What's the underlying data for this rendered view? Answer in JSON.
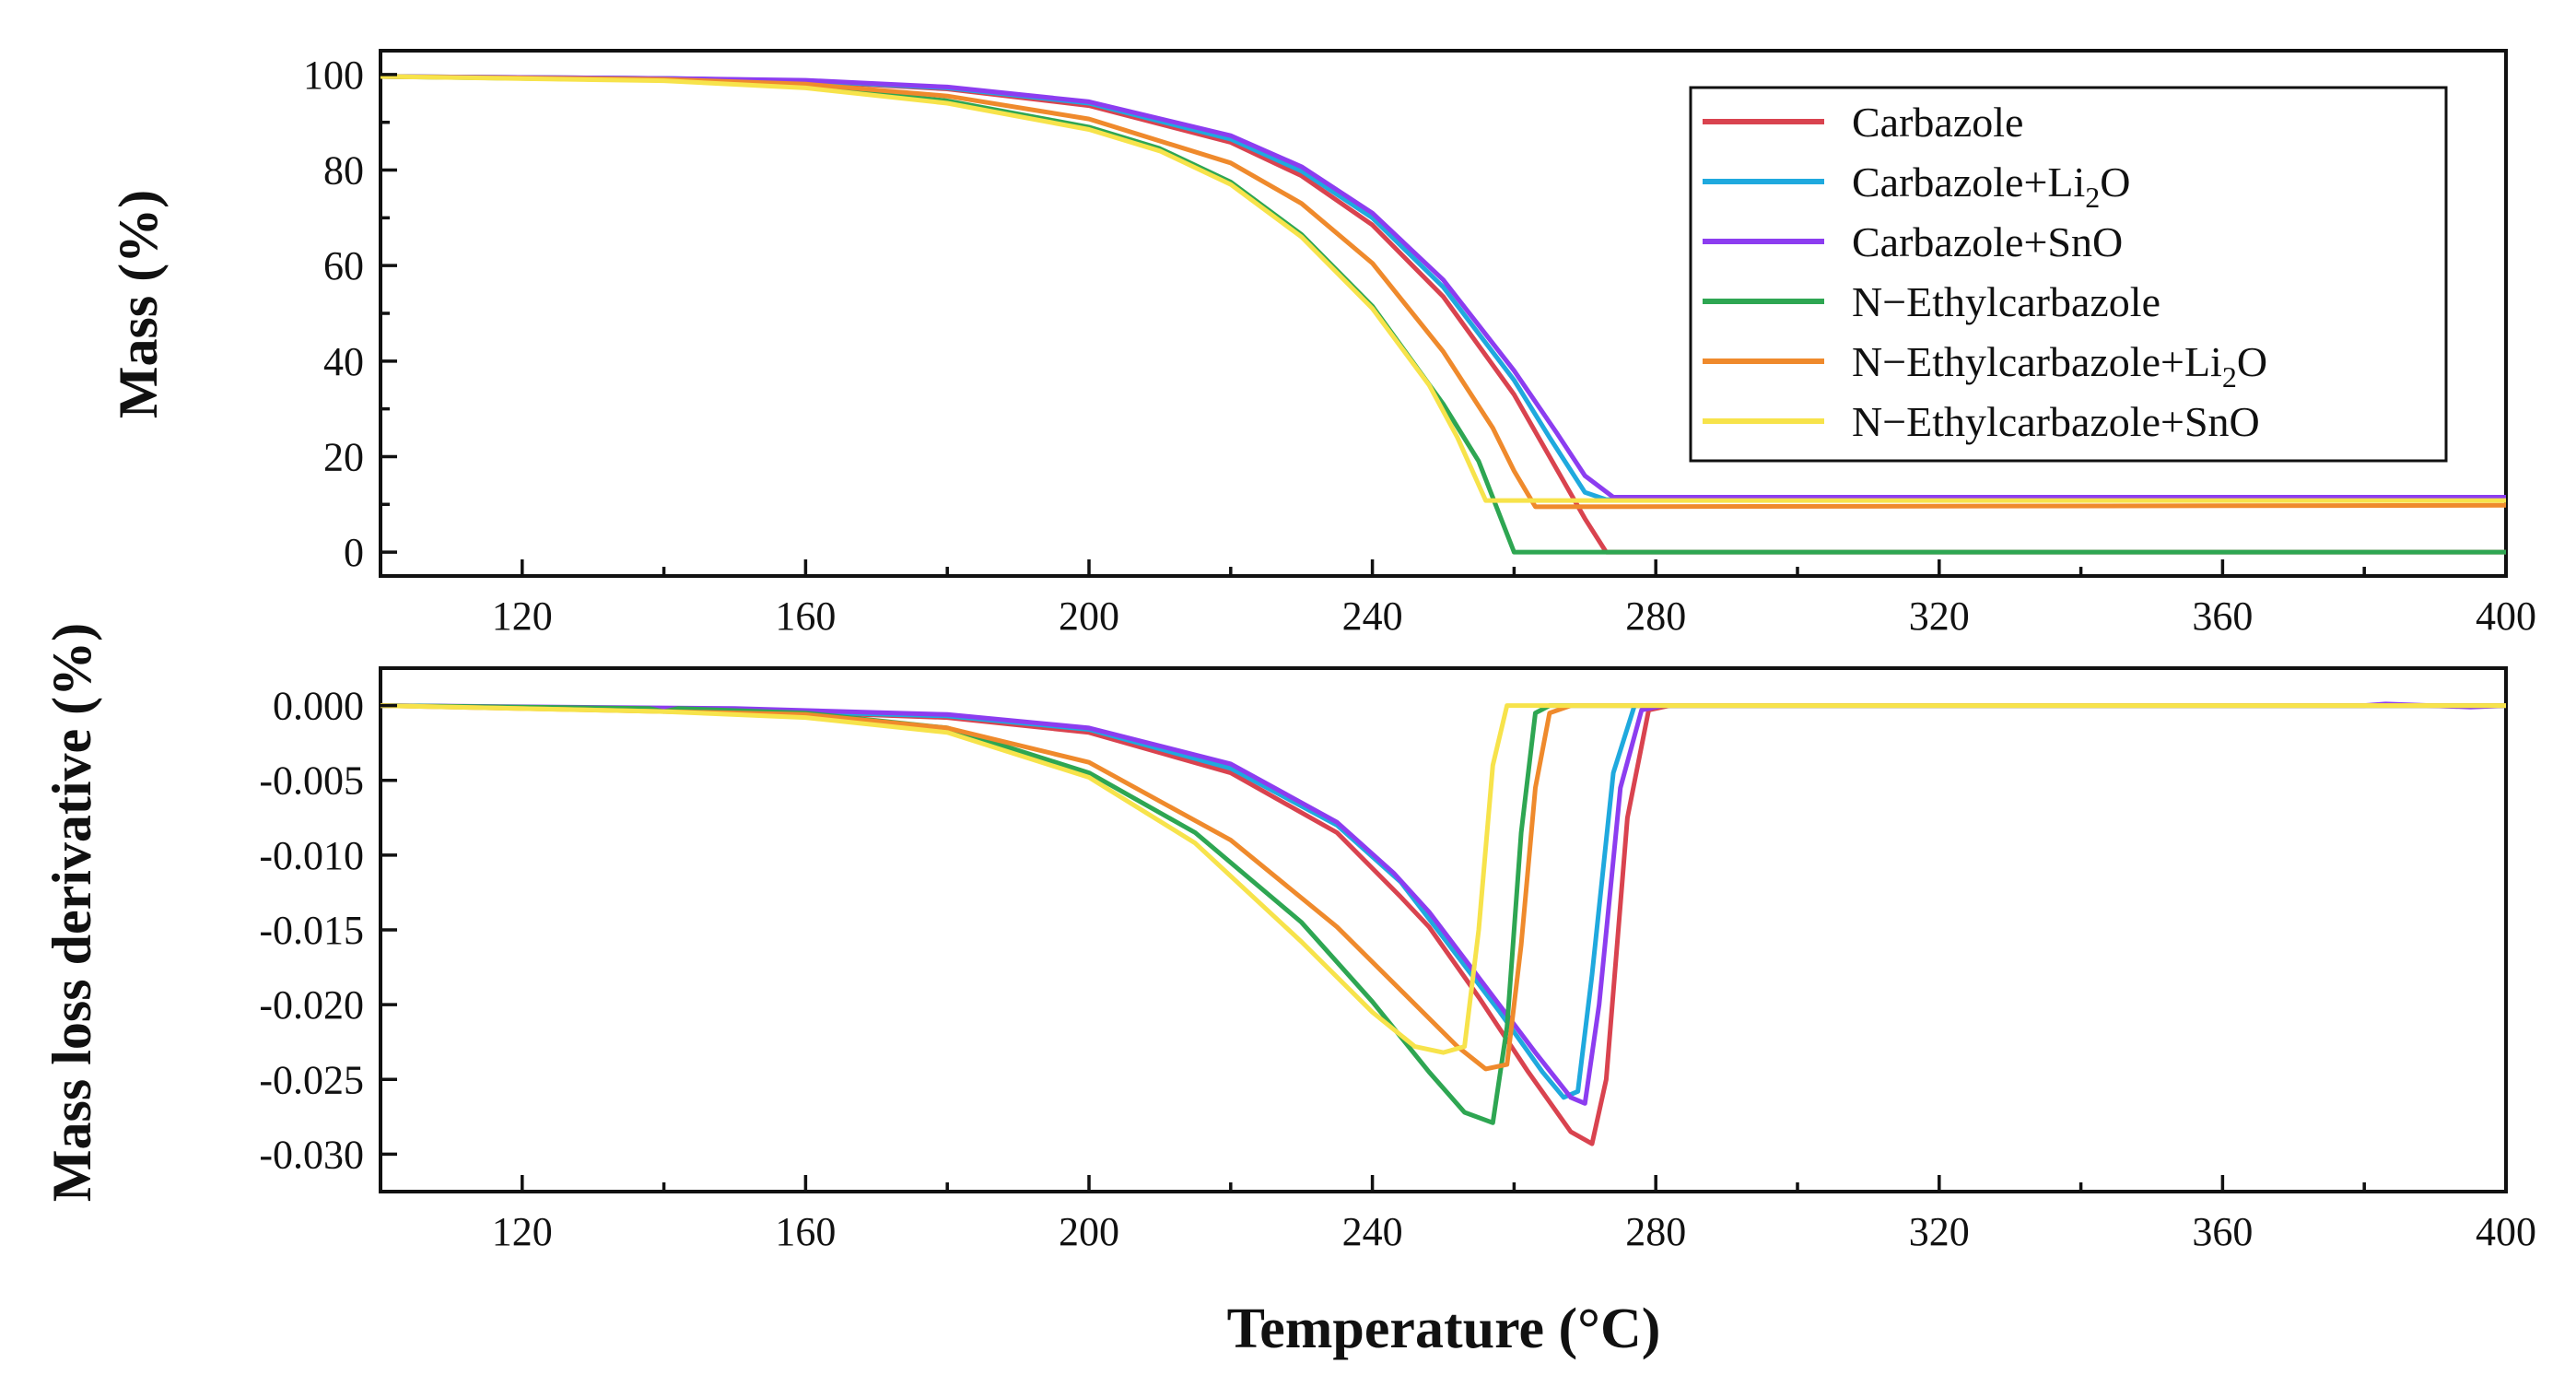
{
  "chart_data": [
    {
      "type": "line",
      "panel": "top",
      "title": "",
      "xlabel": "",
      "ylabel": "Mass (%)",
      "xlim": [
        100,
        400
      ],
      "ylim": [
        -5,
        105
      ],
      "x_ticks": [
        120,
        160,
        200,
        240,
        280,
        320,
        360,
        400
      ],
      "y_ticks": [
        0,
        20,
        40,
        60,
        80,
        100
      ],
      "legend_position": "top-right",
      "series": [
        {
          "name": "Carbazole",
          "legend_label": "Carbazole",
          "color": "#d9434f",
          "points": [
            [
              100,
              99.6
            ],
            [
              140,
              99.2
            ],
            [
              160,
              98.6
            ],
            [
              180,
              97
            ],
            [
              200,
              93.5
            ],
            [
              220,
              85.8
            ],
            [
              230,
              78.8
            ],
            [
              240,
              68.5
            ],
            [
              250,
              53.5
            ],
            [
              260,
              33
            ],
            [
              265,
              20
            ],
            [
              270,
              7
            ],
            [
              273,
              0
            ],
            [
              400,
              0
            ]
          ]
        },
        {
          "name": "Carbazole+Li2O",
          "legend_label": "Carbazole+Li",
          "legend_sub": "2",
          "legend_tail": "O",
          "color": "#1fa9de",
          "points": [
            [
              100,
              99.6
            ],
            [
              140,
              99.2
            ],
            [
              160,
              98.7
            ],
            [
              180,
              97.2
            ],
            [
              200,
              94
            ],
            [
              220,
              86.5
            ],
            [
              230,
              79.8
            ],
            [
              240,
              70
            ],
            [
              250,
              55.5
            ],
            [
              260,
              36
            ],
            [
              265,
              24
            ],
            [
              270,
              12.5
            ],
            [
              273,
              11
            ],
            [
              400,
              11
            ]
          ]
        },
        {
          "name": "Carbazole+SnO",
          "legend_label": "Carbazole+SnO",
          "color": "#8c3df0",
          "points": [
            [
              100,
              99.6
            ],
            [
              140,
              99.2
            ],
            [
              160,
              98.8
            ],
            [
              180,
              97.4
            ],
            [
              200,
              94.3
            ],
            [
              220,
              87.2
            ],
            [
              230,
              80.7
            ],
            [
              240,
              71
            ],
            [
              250,
              57
            ],
            [
              260,
              38
            ],
            [
              266,
              25
            ],
            [
              270,
              16
            ],
            [
              274,
              11.5
            ],
            [
              400,
              11.5
            ]
          ]
        },
        {
          "name": "N-Ethylcarbazole",
          "legend_label": "N−Ethylcarbazole",
          "color": "#2ea652",
          "points": [
            [
              100,
              99.6
            ],
            [
              140,
              98.8
            ],
            [
              160,
              97.5
            ],
            [
              180,
              94.5
            ],
            [
              200,
              89
            ],
            [
              210,
              84.5
            ],
            [
              220,
              77.5
            ],
            [
              230,
              66.5
            ],
            [
              240,
              51.5
            ],
            [
              250,
              31
            ],
            [
              255,
              19
            ],
            [
              260,
              0
            ],
            [
              400,
              0
            ]
          ]
        },
        {
          "name": "N-Ethylcarbazole+Li2O",
          "legend_label": "N−Ethylcarbazole+Li",
          "legend_sub": "2",
          "legend_tail": "O",
          "color": "#ef8a2c",
          "points": [
            [
              100,
              99.6
            ],
            [
              140,
              99
            ],
            [
              160,
              98
            ],
            [
              180,
              95.5
            ],
            [
              200,
              90.7
            ],
            [
              220,
              81.5
            ],
            [
              230,
              73
            ],
            [
              240,
              60.5
            ],
            [
              250,
              42
            ],
            [
              257,
              26
            ],
            [
              260,
              17
            ],
            [
              263,
              9.5
            ],
            [
              400,
              9.8
            ]
          ]
        },
        {
          "name": "N-Ethylcarbazole+SnO",
          "legend_label": "N−Ethylcarbazole+SnO",
          "color": "#f7e34b",
          "points": [
            [
              100,
              99.6
            ],
            [
              140,
              98.7
            ],
            [
              160,
              97.2
            ],
            [
              180,
              94
            ],
            [
              200,
              88.5
            ],
            [
              210,
              84
            ],
            [
              220,
              77
            ],
            [
              230,
              66
            ],
            [
              240,
              51
            ],
            [
              248,
              35
            ],
            [
              252,
              24
            ],
            [
              256,
              10.8
            ],
            [
              400,
              10.8
            ]
          ]
        }
      ]
    },
    {
      "type": "line",
      "panel": "bottom",
      "title": "",
      "xlabel": "Temperature (°C)",
      "ylabel": "Mass loss derivative (%)",
      "xlim": [
        100,
        400
      ],
      "ylim": [
        -0.0325,
        0.0025
      ],
      "x_ticks": [
        120,
        160,
        200,
        240,
        280,
        320,
        360,
        400
      ],
      "y_ticks": [
        "0.000",
        "-0.005",
        "-0.010",
        "-0.015",
        "-0.020",
        "-0.025",
        "-0.030"
      ],
      "y_tick_values": [
        0,
        -0.005,
        -0.01,
        -0.015,
        -0.02,
        -0.025,
        -0.03
      ],
      "series": [
        {
          "name": "Carbazole",
          "color": "#d9434f",
          "points": [
            [
              100,
              0
            ],
            [
              150,
              -0.0003
            ],
            [
              180,
              -0.0008
            ],
            [
              200,
              -0.0018
            ],
            [
              220,
              -0.0045
            ],
            [
              235,
              -0.0085
            ],
            [
              244,
              -0.0128
            ],
            [
              248,
              -0.0148
            ],
            [
              255,
              -0.0195
            ],
            [
              262,
              -0.0245
            ],
            [
              268,
              -0.0285
            ],
            [
              271,
              -0.0293
            ],
            [
              273,
              -0.025
            ],
            [
              276,
              -0.0075
            ],
            [
              279,
              -0.0003
            ],
            [
              282,
              0
            ],
            [
              400,
              0
            ]
          ]
        },
        {
          "name": "Carbazole+Li2O",
          "color": "#1fa9de",
          "points": [
            [
              100,
              0
            ],
            [
              150,
              -0.0003
            ],
            [
              180,
              -0.0007
            ],
            [
              200,
              -0.0016
            ],
            [
              220,
              -0.0042
            ],
            [
              235,
              -0.008
            ],
            [
              244,
              -0.0118
            ],
            [
              250,
              -0.0155
            ],
            [
              258,
              -0.0205
            ],
            [
              264,
              -0.0245
            ],
            [
              267,
              -0.0262
            ],
            [
              269,
              -0.0258
            ],
            [
              271,
              -0.018
            ],
            [
              274,
              -0.0045
            ],
            [
              277,
              0
            ],
            [
              400,
              0
            ]
          ]
        },
        {
          "name": "Carbazole+SnO",
          "color": "#8c3df0",
          "points": [
            [
              100,
              0
            ],
            [
              150,
              -0.0002
            ],
            [
              180,
              -0.0006
            ],
            [
              200,
              -0.0015
            ],
            [
              220,
              -0.0039
            ],
            [
              235,
              -0.0078
            ],
            [
              243,
              -0.0112
            ],
            [
              248,
              -0.0138
            ],
            [
              256,
              -0.0188
            ],
            [
              263,
              -0.0232
            ],
            [
              268,
              -0.0262
            ],
            [
              270,
              -0.0266
            ],
            [
              272,
              -0.02
            ],
            [
              275,
              -0.0055
            ],
            [
              278,
              -0.0003
            ],
            [
              281,
              0
            ],
            [
              380,
              0
            ],
            [
              383,
              0.0001
            ],
            [
              395,
              -0.0001
            ],
            [
              400,
              0
            ]
          ]
        },
        {
          "name": "N-Ethylcarbazole",
          "color": "#2ea652",
          "points": [
            [
              100,
              0
            ],
            [
              138,
              -0.0002
            ],
            [
              140,
              -0.0004
            ],
            [
              142,
              -0.0002
            ],
            [
              160,
              -0.0005
            ],
            [
              180,
              -0.0015
            ],
            [
              200,
              -0.0045
            ],
            [
              215,
              -0.0085
            ],
            [
              230,
              -0.0145
            ],
            [
              240,
              -0.0198
            ],
            [
              248,
              -0.0245
            ],
            [
              253,
              -0.0272
            ],
            [
              257,
              -0.0279
            ],
            [
              259,
              -0.0215
            ],
            [
              261,
              -0.0085
            ],
            [
              263,
              -0.0005
            ],
            [
              265,
              0
            ],
            [
              400,
              0
            ]
          ]
        },
        {
          "name": "N-Ethylcarbazole+Li2O",
          "color": "#ef8a2c",
          "points": [
            [
              100,
              0
            ],
            [
              160,
              -0.0006
            ],
            [
              180,
              -0.0015
            ],
            [
              200,
              -0.0038
            ],
            [
              220,
              -0.009
            ],
            [
              235,
              -0.0148
            ],
            [
              245,
              -0.0195
            ],
            [
              252,
              -0.0228
            ],
            [
              256,
              -0.0243
            ],
            [
              259,
              -0.024
            ],
            [
              261,
              -0.016
            ],
            [
              263,
              -0.0055
            ],
            [
              265,
              -0.0005
            ],
            [
              268,
              0
            ],
            [
              400,
              0
            ]
          ]
        },
        {
          "name": "N-Ethylcarbazole+SnO",
          "color": "#f7e34b",
          "points": [
            [
              100,
              0
            ],
            [
              140,
              -0.0004
            ],
            [
              160,
              -0.0008
            ],
            [
              180,
              -0.0018
            ],
            [
              200,
              -0.0048
            ],
            [
              215,
              -0.0092
            ],
            [
              230,
              -0.0158
            ],
            [
              240,
              -0.0205
            ],
            [
              246,
              -0.0228
            ],
            [
              250,
              -0.0232
            ],
            [
              253,
              -0.0228
            ],
            [
              255,
              -0.015
            ],
            [
              257,
              -0.004
            ],
            [
              259,
              0
            ],
            [
              400,
              0
            ]
          ]
        }
      ]
    }
  ]
}
